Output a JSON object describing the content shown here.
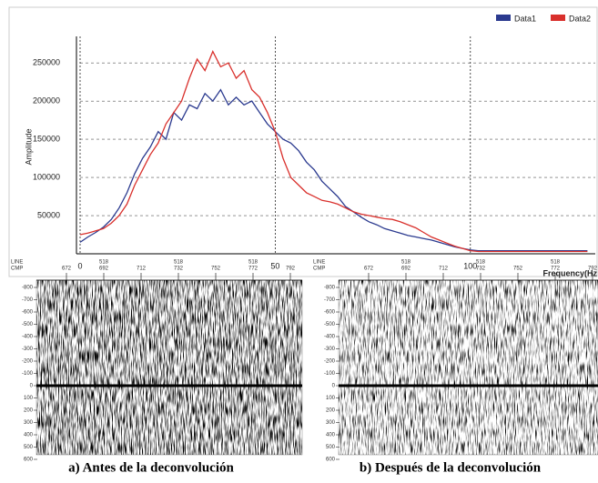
{
  "chart_data": {
    "type": "line",
    "y_label": "Amplitude",
    "x_label": "Frequency(Hz",
    "x": [
      0,
      2,
      4,
      6,
      8,
      10,
      12,
      14,
      16,
      18,
      20,
      22,
      24,
      26,
      28,
      30,
      32,
      34,
      36,
      38,
      40,
      42,
      44,
      46,
      48,
      50,
      52,
      54,
      56,
      58,
      60,
      62,
      64,
      66,
      68,
      70,
      72,
      74,
      76,
      78,
      80,
      82,
      84,
      86,
      88,
      90,
      92,
      94,
      96,
      98,
      100,
      102,
      104,
      106,
      108,
      110,
      112,
      114,
      116,
      118,
      120,
      122,
      124,
      126,
      128,
      130
    ],
    "series": [
      {
        "name": "Data1",
        "color": "#2b3a8f",
        "values": [
          15000,
          22000,
          28000,
          35000,
          45000,
          60000,
          80000,
          105000,
          125000,
          140000,
          160000,
          150000,
          185000,
          175000,
          195000,
          190000,
          210000,
          200000,
          215000,
          195000,
          205000,
          195000,
          200000,
          185000,
          170000,
          160000,
          150000,
          145000,
          135000,
          120000,
          110000,
          95000,
          85000,
          75000,
          62000,
          55000,
          48000,
          42000,
          38000,
          33000,
          30000,
          27000,
          24000,
          22000,
          20000,
          18000,
          15000,
          12000,
          9000,
          7000,
          5000,
          4000,
          4000,
          4000,
          4000,
          4000,
          4000,
          4000,
          4000,
          4000,
          4000,
          4000,
          4000,
          4000,
          4000,
          4000
        ]
      },
      {
        "name": "Data2",
        "color": "#d9302c",
        "values": [
          25000,
          27000,
          30000,
          33000,
          40000,
          50000,
          65000,
          90000,
          110000,
          130000,
          145000,
          170000,
          185000,
          200000,
          230000,
          255000,
          240000,
          265000,
          245000,
          250000,
          230000,
          240000,
          215000,
          205000,
          185000,
          160000,
          125000,
          100000,
          90000,
          80000,
          75000,
          70000,
          68000,
          65000,
          60000,
          55000,
          52000,
          50000,
          48000,
          46000,
          45000,
          42000,
          38000,
          34000,
          28000,
          22000,
          18000,
          14000,
          10000,
          7000,
          4000,
          3000,
          3000,
          3000,
          3000,
          3000,
          3000,
          3000,
          3000,
          3000,
          3000,
          3000,
          3000,
          3000,
          3000,
          3000
        ]
      }
    ],
    "xlim": [
      0,
      132
    ],
    "xticks": [
      0,
      50,
      100
    ],
    "ylim": [
      0,
      280000
    ],
    "yticks": [
      50000,
      100000,
      150000,
      200000,
      250000
    ],
    "grid": true,
    "legend": "top-right"
  },
  "figure": {
    "panels": [
      {
        "caption": "a) Antes de la deconvolución",
        "line_label": "LINE",
        "cmp_label": "CMP",
        "line_value": "518",
        "cmp": [
          "672",
          "692",
          "712",
          "732",
          "752",
          "772",
          "792"
        ],
        "depth": [
          "-800",
          "-700",
          "-600",
          "-500",
          "-400",
          "-300",
          "-200",
          "-100",
          "0",
          "100",
          "200",
          "300",
          "400",
          "500",
          "600"
        ]
      },
      {
        "caption": "b) Después de la deconvolución",
        "line_label": "LINE",
        "cmp_label": "CMP",
        "line_value": "518",
        "cmp": [
          "672",
          "692",
          "712",
          "732",
          "752",
          "772",
          "792"
        ],
        "depth": [
          "-800",
          "-700",
          "-600",
          "-500",
          "-400",
          "-300",
          "-200",
          "-100",
          "0",
          "100",
          "200",
          "300",
          "400",
          "500",
          "600"
        ]
      }
    ]
  }
}
